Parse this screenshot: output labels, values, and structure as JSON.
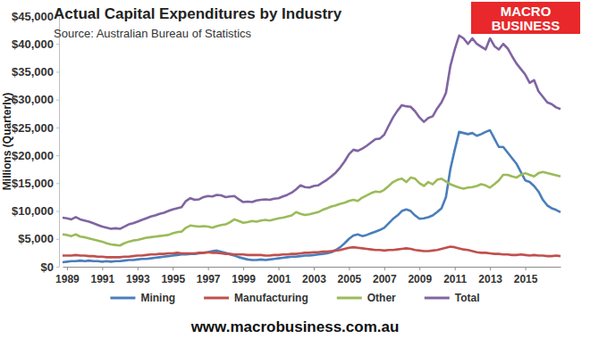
{
  "chart_data": {
    "type": "line",
    "title": "Actual Capital Expenditures by Industry",
    "subtitle": "Source: Australian Bureau of Statistics",
    "y_label": "Millions (Quarterly)",
    "annotations": [
      "MACRO",
      "BUSINESS",
      "www.macrobusiness.com.au"
    ],
    "categories": [
      null,
      "1989",
      null,
      null,
      null,
      null,
      null,
      null,
      null,
      "1991",
      null,
      null,
      null,
      null,
      null,
      null,
      null,
      "1993",
      null,
      null,
      null,
      null,
      null,
      null,
      null,
      "1995",
      null,
      null,
      null,
      null,
      null,
      null,
      null,
      "1997",
      null,
      null,
      null,
      null,
      null,
      null,
      null,
      "1999",
      null,
      null,
      null,
      null,
      null,
      null,
      null,
      "2001",
      null,
      null,
      null,
      null,
      null,
      null,
      null,
      "2003",
      null,
      null,
      null,
      null,
      null,
      null,
      null,
      "2005",
      null,
      null,
      null,
      null,
      null,
      null,
      null,
      "2007",
      null,
      null,
      null,
      null,
      null,
      null,
      null,
      "2009",
      null,
      null,
      null,
      null,
      null,
      null,
      null,
      "2011",
      null,
      null,
      null,
      null,
      null,
      null,
      null,
      "2013",
      null,
      null,
      null,
      null,
      null,
      null,
      null,
      "2015",
      null,
      null,
      null,
      null,
      null,
      null,
      null,
      null
    ],
    "series": [
      {
        "name": "Mining",
        "color": "#4a7ebb",
        "values": [
          800,
          900,
          1000,
          1000,
          1100,
          1000,
          1100,
          1000,
          1000,
          900,
          1000,
          900,
          1000,
          1000,
          1100,
          1200,
          1200,
          1300,
          1400,
          1400,
          1500,
          1600,
          1700,
          1800,
          1900,
          2000,
          2100,
          2200,
          2200,
          2300,
          2300,
          2400,
          2500,
          2600,
          2800,
          2900,
          2700,
          2500,
          2200,
          2000,
          1700,
          1500,
          1300,
          1200,
          1200,
          1300,
          1200,
          1300,
          1400,
          1500,
          1600,
          1700,
          1800,
          1800,
          1900,
          2000,
          2000,
          2100,
          2200,
          2300,
          2400,
          2600,
          3000,
          3500,
          4200,
          5000,
          5600,
          5800,
          5500,
          5700,
          6000,
          6300,
          6600,
          7000,
          7800,
          8600,
          9200,
          10000,
          10300,
          10000,
          9200,
          8600,
          8700,
          8900,
          9200,
          9800,
          10500,
          12500,
          17500,
          21000,
          24200,
          24000,
          23800,
          24000,
          23500,
          23800,
          24200,
          24500,
          23000,
          21500,
          21500,
          20500,
          19500,
          18500,
          17000,
          15500,
          15200,
          14500,
          13500,
          12000,
          11000,
          10500,
          10200,
          9800
        ]
      },
      {
        "name": "Manufacturing",
        "color": "#c0504d",
        "values": [
          2000,
          2000,
          2000,
          2100,
          2000,
          2000,
          1900,
          1900,
          1800,
          1800,
          1700,
          1700,
          1700,
          1700,
          1800,
          1800,
          1900,
          2000,
          2000,
          2100,
          2200,
          2200,
          2300,
          2300,
          2400,
          2400,
          2500,
          2400,
          2400,
          2400,
          2400,
          2500,
          2500,
          2600,
          2500,
          2500,
          2400,
          2300,
          2300,
          2200,
          2200,
          2200,
          2100,
          2100,
          2100,
          2100,
          2000,
          2000,
          2100,
          2100,
          2200,
          2200,
          2300,
          2300,
          2400,
          2500,
          2500,
          2600,
          2600,
          2700,
          2700,
          2800,
          2900,
          3000,
          3200,
          3400,
          3500,
          3400,
          3300,
          3200,
          3100,
          3000,
          3000,
          2900,
          3000,
          3000,
          3100,
          3200,
          3300,
          3200,
          3000,
          2900,
          2800,
          2800,
          2900,
          3000,
          3200,
          3400,
          3600,
          3500,
          3300,
          3100,
          3000,
          2800,
          2600,
          2500,
          2500,
          2400,
          2300,
          2300,
          2200,
          2200,
          2100,
          2100,
          2200,
          2100,
          2000,
          2100,
          2000,
          2000,
          1900,
          1900,
          2000,
          1900
        ]
      },
      {
        "name": "Other",
        "color": "#9bbb59",
        "values": [
          5800,
          5700,
          5500,
          5800,
          5400,
          5300,
          5100,
          4900,
          4700,
          4500,
          4200,
          4000,
          3900,
          3800,
          4200,
          4500,
          4700,
          4800,
          5000,
          5200,
          5300,
          5400,
          5500,
          5600,
          5700,
          6000,
          6200,
          6300,
          7000,
          7400,
          7300,
          7200,
          7300,
          7200,
          7000,
          7300,
          7500,
          7600,
          8000,
          8500,
          8200,
          7900,
          8000,
          8200,
          8100,
          8300,
          8400,
          8300,
          8500,
          8700,
          8800,
          9000,
          9200,
          9800,
          9500,
          9300,
          9400,
          9600,
          9800,
          10200,
          10500,
          10800,
          11000,
          11300,
          11500,
          11800,
          12000,
          11800,
          12400,
          12800,
          13200,
          13500,
          13400,
          13800,
          14500,
          15200,
          15600,
          15800,
          15200,
          16000,
          15800,
          15000,
          14500,
          15200,
          14800,
          15600,
          15800,
          15300,
          14800,
          14500,
          14200,
          14000,
          14200,
          14300,
          14500,
          14800,
          14600,
          14200,
          14800,
          15500,
          16500,
          16500,
          16200,
          16000,
          16500,
          16800,
          16500,
          16200,
          16800,
          17000,
          16800,
          16600,
          16400,
          16200
        ]
      },
      {
        "name": "Total",
        "color": "#8064a2",
        "values": [
          8800,
          8700,
          8500,
          8900,
          8500,
          8300,
          8100,
          7800,
          7500,
          7200,
          7000,
          6800,
          6900,
          6800,
          7200,
          7600,
          7800,
          8100,
          8400,
          8700,
          9000,
          9200,
          9500,
          9700,
          10000,
          10300,
          10500,
          10700,
          11800,
          12300,
          12000,
          12100,
          12500,
          12700,
          12600,
          12900,
          12800,
          12500,
          12600,
          12700,
          12100,
          11600,
          11700,
          11600,
          11900,
          12000,
          12100,
          12000,
          12200,
          12300,
          12600,
          12900,
          13300,
          13900,
          14600,
          14300,
          14200,
          14500,
          14600,
          15100,
          15600,
          16200,
          16900,
          17800,
          18900,
          20200,
          21000,
          20800,
          21200,
          21700,
          22300,
          22900,
          23000,
          23700,
          25300,
          26800,
          28000,
          29000,
          28800,
          28700,
          27900,
          26800,
          26000,
          26700,
          27000,
          28400,
          29500,
          31200,
          36000,
          39000,
          41500,
          41000,
          40000,
          41000,
          40000,
          39500,
          39000,
          41000,
          39600,
          39000,
          40000,
          39200,
          37800,
          36500,
          35500,
          34500,
          33000,
          33500,
          31500,
          30500,
          29500,
          29200,
          28600,
          28300
        ]
      }
    ],
    "ylim": [
      0,
      45000
    ],
    "yticks": [
      {
        "value": 0,
        "label": "$0"
      },
      {
        "value": 5000,
        "label": "$5,000"
      },
      {
        "value": 10000,
        "label": "$10,000"
      },
      {
        "value": 15000,
        "label": "$15,000"
      },
      {
        "value": 20000,
        "label": "$20,000"
      },
      {
        "value": 25000,
        "label": "$25,000"
      },
      {
        "value": 30000,
        "label": "$30,000"
      },
      {
        "value": 35000,
        "label": "$35,000"
      },
      {
        "value": 40000,
        "label": "$40,000"
      },
      {
        "value": 45000,
        "label": "$45,000"
      }
    ],
    "grid": false,
    "legend": "bottom"
  }
}
